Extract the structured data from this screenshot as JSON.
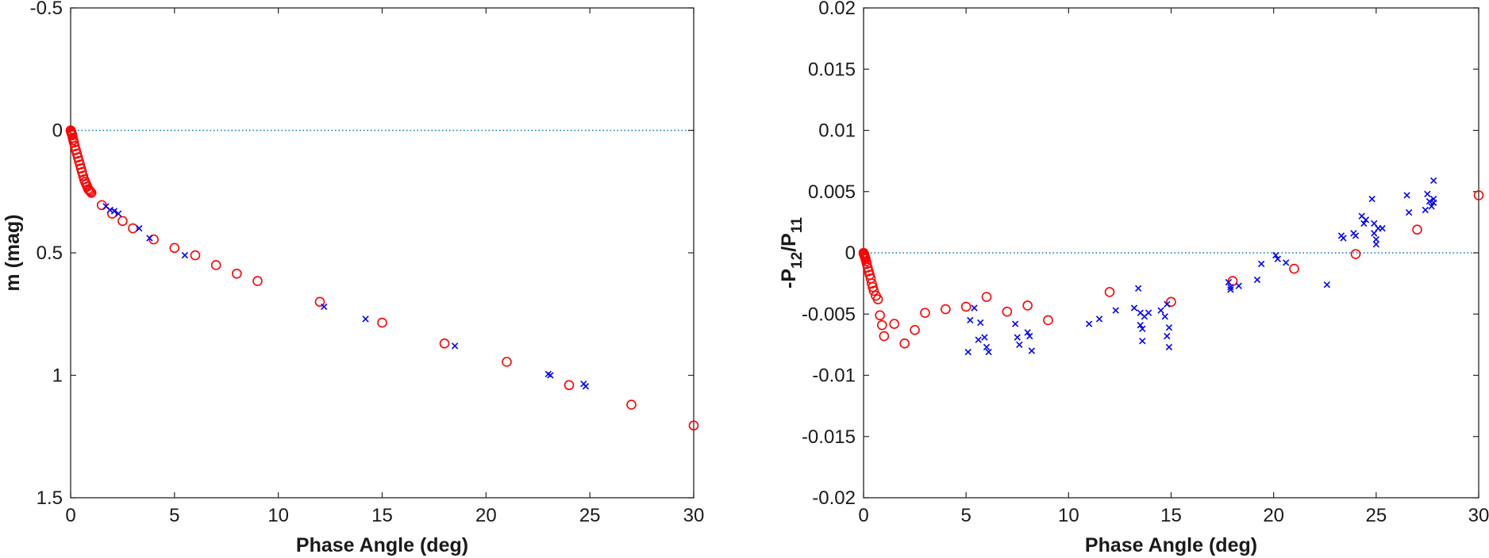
{
  "chart_data": [
    {
      "type": "scatter",
      "title": "",
      "xlabel": "Phase Angle (deg)",
      "ylabel": "m (mag)",
      "xlim": [
        0,
        30
      ],
      "ylim": [
        -0.5,
        1.5
      ],
      "y_reversed": true,
      "xticks": [
        "0",
        "5",
        "10",
        "15",
        "20",
        "25",
        "30"
      ],
      "yticks": [
        "-0.5",
        "0",
        "0.5",
        "1",
        "1.5"
      ],
      "xtick_values": [
        0,
        5,
        10,
        15,
        20,
        25,
        30
      ],
      "ytick_values": [
        -0.5,
        0,
        0.5,
        1,
        1.5
      ],
      "reference_line": {
        "y": 0,
        "style": "dotted",
        "color": "#0072bd"
      },
      "series": [
        {
          "name": "circles",
          "marker": "circle",
          "color": "#ff0000",
          "x": [
            0.0,
            0.02,
            0.04,
            0.06,
            0.08,
            0.1,
            0.13,
            0.16,
            0.2,
            0.25,
            0.3,
            0.35,
            0.4,
            0.45,
            0.5,
            0.55,
            0.6,
            0.65,
            0.7,
            0.75,
            0.8,
            0.85,
            0.9,
            0.95,
            1.0,
            1.5,
            2.0,
            2.5,
            3.0,
            4.0,
            5.0,
            6.0,
            7.0,
            8.0,
            9.0,
            12.0,
            15.0,
            18.0,
            21.0,
            24.0,
            27.0,
            30.0
          ],
          "y": [
            0.0,
            0.005,
            0.01,
            0.015,
            0.02,
            0.03,
            0.04,
            0.05,
            0.065,
            0.08,
            0.095,
            0.11,
            0.125,
            0.14,
            0.155,
            0.17,
            0.185,
            0.2,
            0.21,
            0.22,
            0.23,
            0.24,
            0.245,
            0.25,
            0.255,
            0.305,
            0.34,
            0.37,
            0.4,
            0.445,
            0.48,
            0.51,
            0.55,
            0.585,
            0.615,
            0.7,
            0.785,
            0.87,
            0.945,
            1.04,
            1.12,
            1.205
          ]
        },
        {
          "name": "crosses",
          "marker": "x",
          "color": "#0000ff",
          "x": [
            1.7,
            1.9,
            2.1,
            2.3,
            3.3,
            3.8,
            5.5,
            12.2,
            14.2,
            18.5,
            23.0,
            23.1,
            24.7,
            24.8
          ],
          "y": [
            0.31,
            0.325,
            0.33,
            0.34,
            0.4,
            0.44,
            0.51,
            0.72,
            0.77,
            0.88,
            0.995,
            1.0,
            1.035,
            1.045
          ]
        }
      ]
    },
    {
      "type": "scatter",
      "title": "",
      "xlabel": "Phase Angle (deg)",
      "ylabel": "-P12/P11",
      "ylabel_parts": {
        "prefix": "-P",
        "sub1": "12",
        "mid": "/P",
        "sub2": "11"
      },
      "xlim": [
        0,
        30
      ],
      "ylim": [
        -0.02,
        0.02
      ],
      "y_reversed": false,
      "xticks": [
        "0",
        "5",
        "10",
        "15",
        "20",
        "25",
        "30"
      ],
      "yticks": [
        "0.02",
        "0.015",
        "0.01",
        "0.005",
        "0",
        "-0.005",
        "-0.01",
        "-0.015",
        "-0.02"
      ],
      "xtick_values": [
        0,
        5,
        10,
        15,
        20,
        25,
        30
      ],
      "ytick_values": [
        0.02,
        0.015,
        0.01,
        0.005,
        0,
        -0.005,
        -0.01,
        -0.015,
        -0.02
      ],
      "reference_line": {
        "y": 0,
        "style": "dotted",
        "color": "#0072bd"
      },
      "series": [
        {
          "name": "circles",
          "marker": "circle",
          "color": "#ff0000",
          "x": [
            0.0,
            0.02,
            0.04,
            0.06,
            0.08,
            0.1,
            0.13,
            0.16,
            0.2,
            0.25,
            0.3,
            0.35,
            0.4,
            0.45,
            0.5,
            0.6,
            0.7,
            0.8,
            0.9,
            1.0,
            1.5,
            2.0,
            2.5,
            3.0,
            4.0,
            5.0,
            6.0,
            7.0,
            8.0,
            9.0,
            12.0,
            15.0,
            18.0,
            21.0,
            24.0,
            27.0,
            30.0
          ],
          "y": [
            0.0,
            -0.0001,
            -0.0002,
            -0.0003,
            -0.0004,
            -0.0005,
            -0.0007,
            -0.0009,
            -0.0012,
            -0.0015,
            -0.0018,
            -0.0021,
            -0.0025,
            -0.0028,
            -0.0031,
            -0.0035,
            -0.0038,
            -0.0051,
            -0.0059,
            -0.0068,
            -0.0058,
            -0.0074,
            -0.0063,
            -0.0049,
            -0.0046,
            -0.0044,
            -0.0036,
            -0.0048,
            -0.0043,
            -0.0055,
            -0.0032,
            -0.004,
            -0.0023,
            -0.0013,
            -0.0001,
            0.0019,
            0.0047
          ]
        },
        {
          "name": "crosses",
          "marker": "x",
          "color": "#0000ff",
          "x": [
            5.1,
            5.2,
            5.4,
            5.6,
            5.7,
            5.9,
            6.0,
            6.1,
            7.4,
            7.5,
            7.6,
            8.0,
            8.1,
            8.2,
            11.0,
            11.5,
            12.3,
            13.2,
            13.4,
            13.5,
            13.5,
            13.6,
            13.6,
            13.7,
            13.9,
            14.5,
            14.7,
            14.8,
            14.8,
            14.9,
            14.9,
            17.8,
            17.9,
            17.9,
            18.3,
            19.2,
            19.4,
            20.1,
            20.2,
            20.6,
            22.6,
            23.3,
            23.4,
            23.9,
            24.0,
            24.3,
            24.4,
            24.5,
            24.8,
            24.9,
            24.9,
            25.0,
            25.0,
            25.1,
            25.3,
            26.5,
            26.6,
            27.4,
            27.5,
            27.6,
            27.7,
            27.8,
            27.8,
            27.8
          ],
          "y": [
            -0.0081,
            -0.0055,
            -0.0045,
            -0.0071,
            -0.0057,
            -0.0069,
            -0.0077,
            -0.0081,
            -0.0058,
            -0.0069,
            -0.0075,
            -0.0065,
            -0.0068,
            -0.008,
            -0.0058,
            -0.0054,
            -0.0047,
            -0.0045,
            -0.0029,
            -0.0049,
            -0.0059,
            -0.0062,
            -0.0072,
            -0.0052,
            -0.0049,
            -0.0047,
            -0.0052,
            -0.0042,
            -0.0068,
            -0.0061,
            -0.0077,
            -0.0024,
            -0.0028,
            -0.003,
            -0.0027,
            -0.0022,
            -0.0009,
            -0.0002,
            -0.0005,
            -0.0008,
            -0.0026,
            0.0014,
            0.0012,
            0.0016,
            0.0014,
            0.003,
            0.0024,
            0.0027,
            0.0044,
            0.0024,
            0.0016,
            0.0011,
            0.0007,
            0.002,
            0.002,
            0.0047,
            0.0033,
            0.0035,
            0.0048,
            0.0042,
            0.0038,
            0.0059,
            0.0041,
            0.0044
          ]
        }
      ]
    }
  ]
}
